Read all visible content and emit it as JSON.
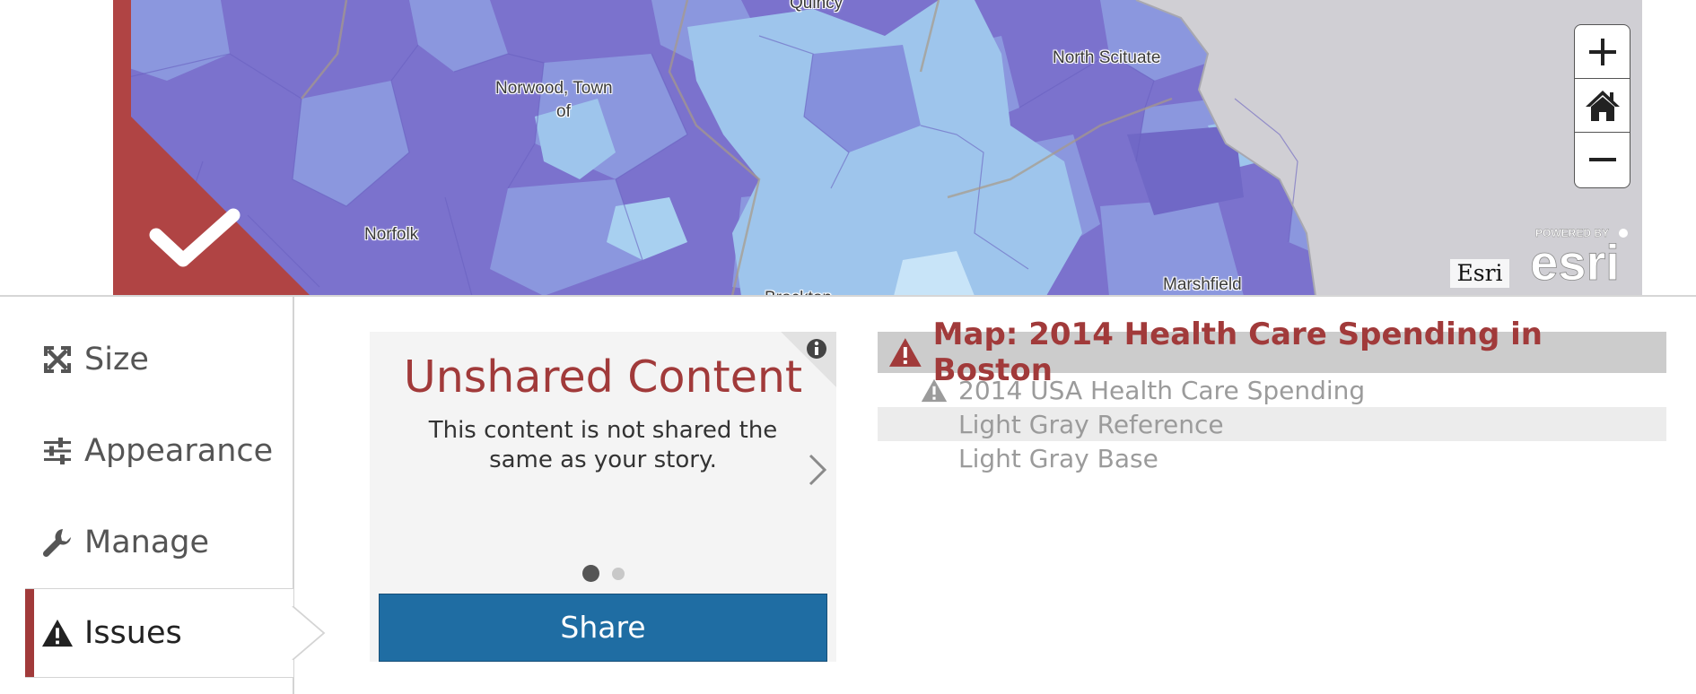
{
  "map": {
    "place_labels": [
      "Quincy",
      "North Scituate",
      "Norwood, Town",
      "of",
      "Norfolk",
      "Brockton",
      "Marshfield"
    ],
    "attribution": "Esri",
    "logo_tagline": "POWERED BY",
    "logo_wordmark": "esri",
    "zoom_controls": [
      "plus-icon",
      "home-icon",
      "minus-icon"
    ],
    "colors": {
      "dark_region": "#7b72cd",
      "mid_region": "#8b97de",
      "light_region": "#9ec5ec",
      "water": "#d0cfd4",
      "approved_badge": "#b04444"
    }
  },
  "sidebar": {
    "items": [
      {
        "label": "Size",
        "icon": "resize-icon"
      },
      {
        "label": "Appearance",
        "icon": "sliders-icon"
      },
      {
        "label": "Manage",
        "icon": "wrench-icon"
      },
      {
        "label": "Issues",
        "icon": "warning-icon",
        "active": true
      }
    ],
    "accent_color": "#a13a3a"
  },
  "card": {
    "title": "Unshared Content",
    "description": "This content is not shared the same as your story.",
    "page_current": 1,
    "page_total": 2,
    "button_label": "Share",
    "button_color": "#1f6da3"
  },
  "issues": {
    "root": "Map: 2014 Health Care Spending in Boston",
    "children": [
      {
        "label": "2014 USA Health Care Spending",
        "warning": true
      },
      {
        "label": "Light Gray Reference",
        "warning": false
      },
      {
        "label": "Light Gray Base",
        "warning": false
      }
    ]
  }
}
